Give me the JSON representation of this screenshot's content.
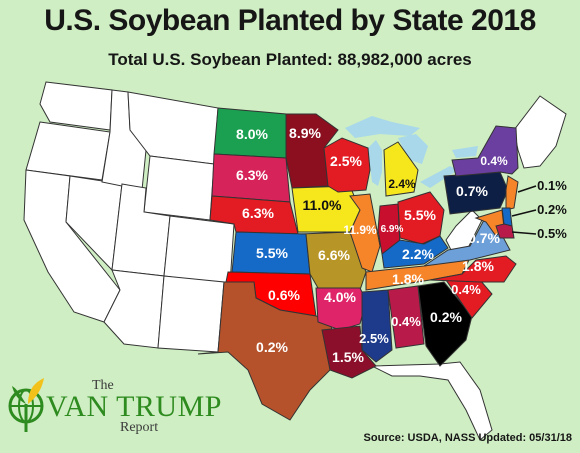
{
  "title": "U.S. Soybean Planted by State 2018",
  "subtitle": "Total U.S. Soybean Planted: 88,982,000 acres",
  "source": "Source: USDA, NASS Updated: 05/31/18",
  "logo": {
    "the": "The",
    "name": "VAN TRUMP",
    "report": "Report",
    "icon": "globe-sprout-icon"
  },
  "colors": {
    "background": "#cfeec3",
    "water": "#a8d8ea",
    "other_states": "#ffffff",
    "state_border": "#333333"
  },
  "states": [
    {
      "name": "North Dakota",
      "label": "8.0%",
      "color": "#1aa050"
    },
    {
      "name": "Minnesota",
      "label": "8.9%",
      "color": "#8b0f1e"
    },
    {
      "name": "South Dakota",
      "label": "6.3%",
      "color": "#d6245b"
    },
    {
      "name": "Nebraska",
      "label": "6.3%",
      "color": "#e31b23"
    },
    {
      "name": "Kansas",
      "label": "5.5%",
      "color": "#1569c7"
    },
    {
      "name": "Oklahoma",
      "label": "0.6%",
      "color": "#ff0000"
    },
    {
      "name": "Texas",
      "label": "0.2%",
      "color": "#b5522b"
    },
    {
      "name": "Iowa",
      "label": "11.0%",
      "color": "#f6e61c"
    },
    {
      "name": "Missouri",
      "label": "6.6%",
      "color": "#b89527"
    },
    {
      "name": "Arkansas",
      "label": "4.0%",
      "color": "#e0246a"
    },
    {
      "name": "Louisiana",
      "label": "1.5%",
      "color": "#8b0f2a"
    },
    {
      "name": "Wisconsin",
      "label": "2.5%",
      "color": "#e31b23"
    },
    {
      "name": "Illinois",
      "label": "11.9%",
      "color": "#f6852a"
    },
    {
      "name": "Indiana",
      "label": "6.9%",
      "color": "#c8102e"
    },
    {
      "name": "Michigan",
      "label": "2.4%",
      "color": "#f6e61c"
    },
    {
      "name": "Ohio",
      "label": "5.5%",
      "color": "#e31b23"
    },
    {
      "name": "Kentucky",
      "label": "2.2%",
      "color": "#1569c7"
    },
    {
      "name": "Tennessee",
      "label": "1.8%",
      "color": "#f6852a"
    },
    {
      "name": "Mississippi",
      "label": "2.5%",
      "color": "#1e3a8a"
    },
    {
      "name": "Alabama",
      "label": "0.4%",
      "color": "#b81b4a"
    },
    {
      "name": "Georgia",
      "label": "0.2%",
      "color": "#000000"
    },
    {
      "name": "South Carolina",
      "label": "",
      "color": "#e31b23"
    },
    {
      "name": "North Carolina",
      "label": "0.4%",
      "color": "#e31b23"
    },
    {
      "name": "Virginia",
      "label": "1.8%",
      "color": "#6d9fd8"
    },
    {
      "name": "Maryland",
      "label": "0.7%",
      "color": "#f6852a"
    },
    {
      "name": "Pennsylvania",
      "label": "0.7%",
      "color": "#0e1f45"
    },
    {
      "name": "New York",
      "label": "0.4%",
      "color": "#6b3fa0"
    },
    {
      "name": "New Jersey",
      "label": "0.1%",
      "color": "#f6852a"
    },
    {
      "name": "Delaware",
      "label": "0.2%",
      "color": "#1569c7"
    },
    {
      "name": "Delmarva",
      "label": "0.5%",
      "color": "#b81b4a"
    }
  ]
}
